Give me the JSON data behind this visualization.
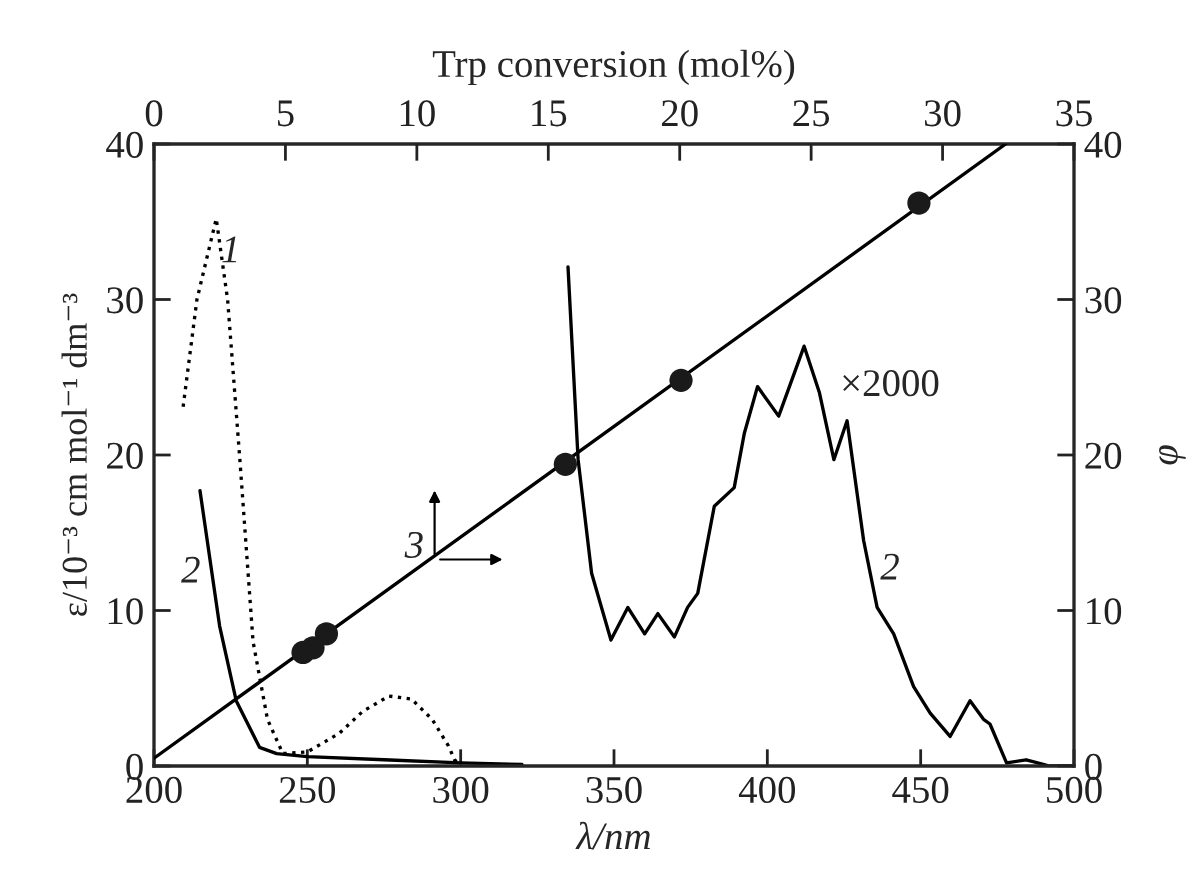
{
  "chart_data": {
    "type": "line",
    "xlabel": "λ/nm",
    "ylabel": "ε/10⁻³ cm mol⁻¹ dm⁻³",
    "y2label": "φ",
    "x2label": "Trp conversion (mol%)",
    "xlim": [
      200,
      500
    ],
    "xticks": [
      200,
      250,
      300,
      350,
      400,
      450,
      500
    ],
    "ylim": [
      0,
      40
    ],
    "yticks": [
      0,
      10,
      20,
      30,
      40
    ],
    "x2lim": [
      0,
      35
    ],
    "x2ticks": [
      0,
      5,
      10,
      15,
      20,
      25,
      30,
      35
    ],
    "y2lim": [
      0,
      40
    ],
    "y2ticks": [
      0,
      10,
      20,
      30,
      40
    ],
    "grid": false,
    "legend": false,
    "series": [
      {
        "color": "#000000",
        "line_style": "dotted",
        "x": [
          209.5,
          214,
          220.3,
          224,
          228,
          232.3,
          237,
          242,
          250,
          260.4,
          268,
          276.6,
          284,
          290.7,
          296,
          298,
          300
        ],
        "values": [
          23.1,
          30,
          35.2,
          30,
          19.7,
          8,
          3,
          0.8,
          0.9,
          2.1,
          3.5,
          4.5,
          4.3,
          3.0,
          1.3,
          0.4,
          0
        ]
      },
      {
        "color": "#000000",
        "line_style": "solid",
        "x": [
          215,
          221.4,
          226.8,
          234.4,
          240,
          250,
          275,
          300,
          320
        ],
        "values": [
          17.7,
          9.0,
          4.2,
          1.2,
          0.8,
          0.6,
          0.4,
          0.2,
          0.1
        ]
      },
      {
        "color": "#000000",
        "line_style": "solid",
        "x": [
          335,
          338.3,
          342.7,
          349,
          354.5,
          360,
          364.3,
          369.7,
          374,
          377.3,
          382.7,
          389.2,
          392.5,
          396.8,
          403.7,
          412,
          417,
          421.7,
          426,
          431.4,
          435.8,
          441.2,
          447.7,
          453.1,
          459.6,
          466.1,
          470.5,
          472.6,
          478,
          484.4,
          492,
          500
        ],
        "values": [
          32.1,
          19.7,
          12.4,
          8.1,
          10.2,
          8.5,
          9.8,
          8.3,
          10.2,
          11.1,
          16.7,
          17.9,
          21.4,
          24.4,
          22.5,
          27.0,
          24,
          19.7,
          22.2,
          14.5,
          10.2,
          8.5,
          5.1,
          3.4,
          1.9,
          4.2,
          3.0,
          2.7,
          0.2,
          0.4,
          0,
          0
        ]
      },
      {
        "axis": "x2",
        "color": "#000000",
        "line_style": "solid",
        "x": [
          0,
          32.4
        ],
        "values": [
          0.5,
          40
        ]
      },
      {
        "type": "scatter",
        "axis": "x2",
        "color": "#1a1a1a",
        "marker": "circle",
        "x": [
          5.67,
          6.05,
          6.56,
          15.65,
          20.05,
          29.1
        ],
        "values": [
          7.3,
          7.6,
          8.5,
          19.4,
          24.8,
          36.2
        ]
      }
    ],
    "annotations": [
      {
        "text": "1",
        "x": 225,
        "y": 33
      },
      "2",
      "2",
      "×2000",
      "3"
    ]
  }
}
